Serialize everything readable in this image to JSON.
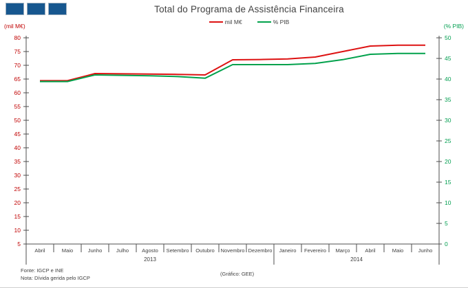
{
  "logo": {
    "squares": 3,
    "color": "#17578f"
  },
  "header": {
    "title": "Total do Programa de Assistência Financeira"
  },
  "legend": {
    "items": [
      {
        "label": "mil M€",
        "color": "#dd1111"
      },
      {
        "label": "% PIB",
        "color": "#00a14b"
      }
    ]
  },
  "axes": {
    "left_unit_label": "(mil M€)",
    "right_unit_label": "(% PIB)",
    "left_color": "#c00000",
    "right_color": "#009e4f",
    "text_color": "#404040"
  },
  "chart_data": {
    "type": "line",
    "title": "Total do Programa de Assistência Financeira",
    "categories": [
      "Abril",
      "Maio",
      "Junho",
      "Julho",
      "Agosto",
      "Setembro",
      "Outubro",
      "Novembro",
      "Dezembro",
      "Janeiro",
      "Fevereiro",
      "Março",
      "Abril",
      "Maio",
      "Junho"
    ],
    "year_groups": [
      {
        "label": "2013",
        "from": 0,
        "to": 8
      },
      {
        "label": "2014",
        "from": 9,
        "to": 14
      }
    ],
    "series": [
      {
        "name": "mil M€",
        "axis": "left",
        "color": "#dd1111",
        "values": [
          64.4,
          64.4,
          67.0,
          66.9,
          66.8,
          66.7,
          66.5,
          72.0,
          72.1,
          72.3,
          73.0,
          75.0,
          77.0,
          77.3,
          77.3
        ]
      },
      {
        "name": "% PIB",
        "axis": "right",
        "color": "#00a14b",
        "values": [
          39.4,
          39.4,
          41.0,
          40.9,
          40.8,
          40.6,
          40.2,
          43.5,
          43.5,
          43.5,
          43.8,
          44.7,
          46.0,
          46.2,
          46.2
        ]
      }
    ],
    "left_axis": {
      "label": "(mil M€)",
      "range": [
        5,
        80
      ],
      "tick_step": 5
    },
    "right_axis": {
      "label": "(% PIB)",
      "range": [
        0,
        50
      ],
      "tick_step": 5
    },
    "grid": false,
    "legend_position": "top"
  },
  "footer": {
    "source": "Fonte: IGCP e INE",
    "note": "Nota: Dívida gerida pelo IGCP",
    "credit": "(Gráfico:  GEE)"
  }
}
